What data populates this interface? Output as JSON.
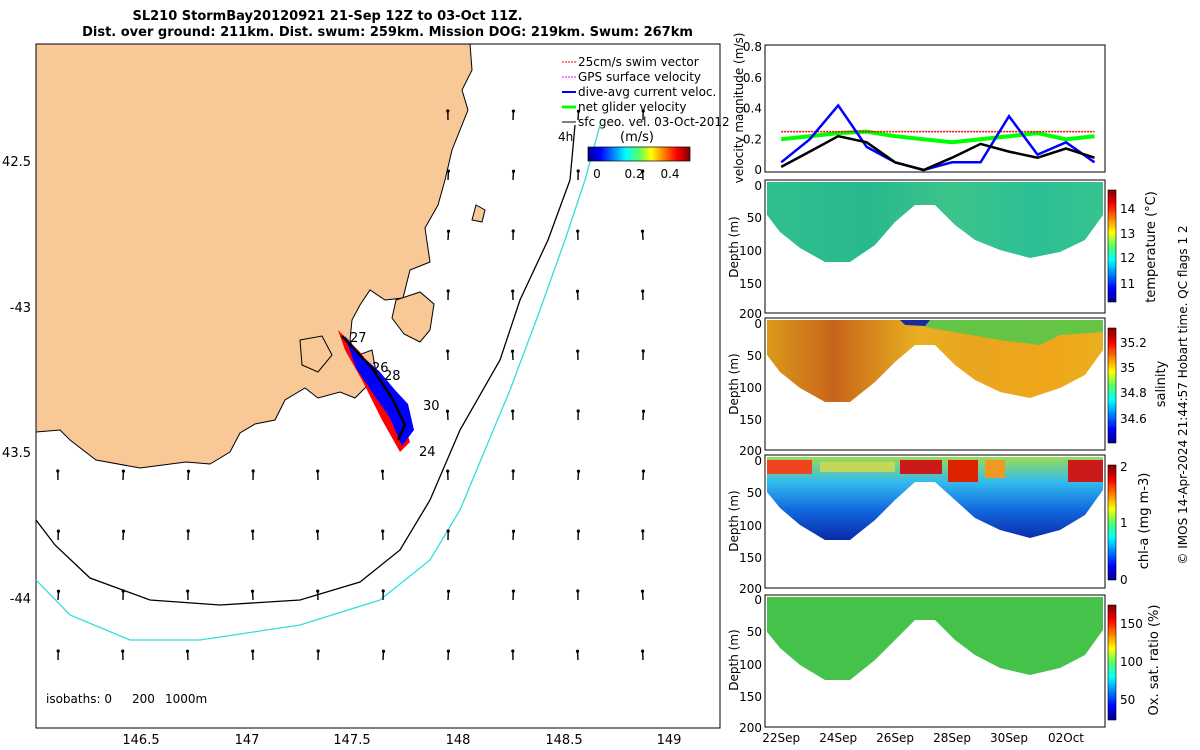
{
  "header": {
    "title_line1": "SL210 StormBay20120921 21-Sep 12Z to 03-Oct 11Z.",
    "title_line2": "Dist. over ground: 211km. Dist. swum: 259km. Mission DOG: 219km. Swum: 267km"
  },
  "map": {
    "lon_ticks": [
      "146.5",
      "147",
      "147.5",
      "148",
      "148.5",
      "149"
    ],
    "lat_ticks": [
      "42.5",
      "-43",
      "43.5",
      "-44"
    ],
    "legend": [
      {
        "label": "25cm/s swim vector",
        "color": "#ff0000"
      },
      {
        "label": "GPS surface velocity",
        "color": "#ff00ff"
      },
      {
        "label": "dive-avg current veloc.",
        "color": "#0000ff"
      },
      {
        "label": "net glider velocity",
        "color": "#00ff00"
      },
      {
        "label": "sfc geo. vel. 03-Oct-2012",
        "color": "#000000"
      }
    ],
    "legend_note": "4h",
    "colorbar_label": "(m/s)",
    "colorbar_ticks": [
      "0",
      "0.2",
      "0.4"
    ],
    "isobaths_label": "isobaths: 0",
    "isobath_values": [
      "200",
      "1000m"
    ],
    "track_labels": [
      "27",
      "26",
      "28",
      "30",
      "24"
    ],
    "colors": {
      "land": "#f8c896",
      "isobath_200": "#000000",
      "isobath_1000": "#33dddd",
      "track": "#0000ff",
      "track_edge": "#ff0000"
    }
  },
  "chart_data": [
    {
      "type": "line",
      "title": "",
      "ylabel": "velocity magnitude (m/s)",
      "ylim": [
        0,
        0.8
      ],
      "y_ticks": [
        "0",
        "0.2",
        "0.4",
        "0.6",
        "0.8"
      ],
      "x_days": [
        22,
        23,
        24,
        25,
        26,
        27,
        28,
        29,
        30,
        31,
        32,
        33
      ],
      "x_ticks": [
        "22Sep",
        "24Sep",
        "26Sep",
        "28Sep",
        "30Sep",
        "02Oct"
      ],
      "series": [
        {
          "color": "#00ff00",
          "values": [
            0.2,
            0.22,
            0.24,
            0.25,
            0.22,
            0.2,
            0.18,
            0.2,
            0.22,
            0.24,
            0.2,
            0.22
          ]
        },
        {
          "color": "#ff0000",
          "values": [
            0.25,
            0.25,
            0.25,
            0.25,
            0.25,
            0.25,
            0.25,
            0.25,
            0.25,
            0.25,
            0.25,
            0.25
          ]
        },
        {
          "color": "#0000ff",
          "values": [
            0.05,
            0.2,
            0.42,
            0.15,
            0.05,
            0.0,
            0.05,
            0.05,
            0.35,
            0.1,
            0.18,
            0.05
          ]
        },
        {
          "color": "#000000",
          "values": [
            0.02,
            0.12,
            0.22,
            0.18,
            0.05,
            0.0,
            0.08,
            0.17,
            0.12,
            0.08,
            0.14,
            0.08
          ]
        }
      ]
    },
    {
      "type": "heatmap",
      "ylabel": "Depth (m)",
      "colorbar_label": "temperature (°C)",
      "colorbar_ticks": [
        "11",
        "12",
        "13",
        "14"
      ],
      "y_ticks": [
        "0",
        "50",
        "100",
        "150",
        "200"
      ],
      "ylim": [
        0,
        200
      ]
    },
    {
      "type": "heatmap",
      "ylabel": "Depth (m)",
      "colorbar_label": "salinity",
      "colorbar_ticks": [
        "34.6",
        "34.8",
        "35",
        "35.2"
      ],
      "y_ticks": [
        "0",
        "50",
        "100",
        "150",
        "200"
      ],
      "ylim": [
        0,
        200
      ]
    },
    {
      "type": "heatmap",
      "ylabel": "Depth (m)",
      "colorbar_label": "chl-a (mg m-3)",
      "colorbar_ticks": [
        "0",
        "1",
        "2"
      ],
      "y_ticks": [
        "0",
        "50",
        "100",
        "150",
        "200"
      ],
      "ylim": [
        0,
        200
      ]
    },
    {
      "type": "heatmap",
      "ylabel": "Depth (m)",
      "colorbar_label": "Ox. sat. ratio (%)",
      "colorbar_ticks": [
        "50",
        "100",
        "150"
      ],
      "y_ticks": [
        "0",
        "50",
        "100",
        "150",
        "200"
      ],
      "ylim": [
        0,
        200
      ]
    }
  ],
  "footer": {
    "side_note": "© IMOS 14-Apr-2024 21:44:57 Hobart time. QC flags 1  2"
  }
}
